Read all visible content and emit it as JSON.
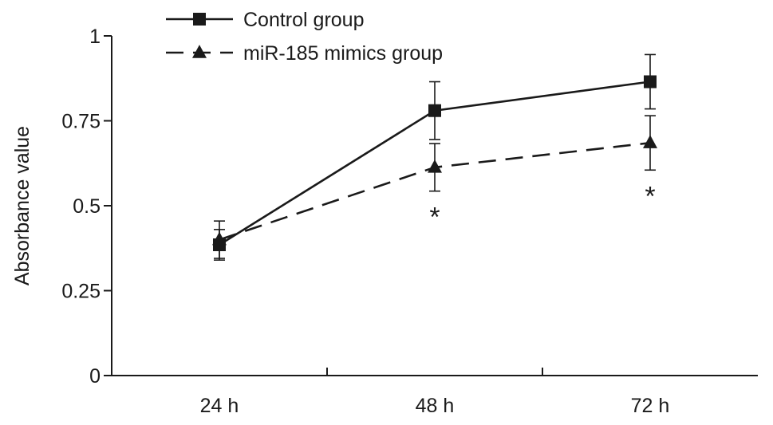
{
  "chart_data": {
    "type": "line",
    "title": "",
    "xlabel": "",
    "ylabel": "Absorbance value",
    "categories": [
      "24 h",
      "48 h",
      "72 h"
    ],
    "ylim": [
      0,
      1
    ],
    "y_ticks": [
      0,
      0.25,
      0.5,
      0.75,
      1
    ],
    "y_tick_labels": [
      "0",
      "0.25",
      "0.5",
      "0.75",
      "1"
    ],
    "grid": false,
    "legend_position": "top-left",
    "series": [
      {
        "name": "Control group",
        "values": [
          0.385,
          0.78,
          0.865
        ],
        "errors": [
          0.045,
          0.085,
          0.08
        ],
        "marker": "square",
        "line_style": "solid",
        "color": "#1a1a1a"
      },
      {
        "name": "miR-185 mimics group",
        "values": [
          0.4,
          0.613,
          0.685
        ],
        "errors": [
          0.055,
          0.07,
          0.08
        ],
        "marker": "triangle",
        "line_style": "dashed",
        "color": "#1a1a1a"
      }
    ],
    "annotations": [
      {
        "text": "*",
        "category": "48 h"
      },
      {
        "text": "*",
        "category": "72 h"
      }
    ]
  }
}
